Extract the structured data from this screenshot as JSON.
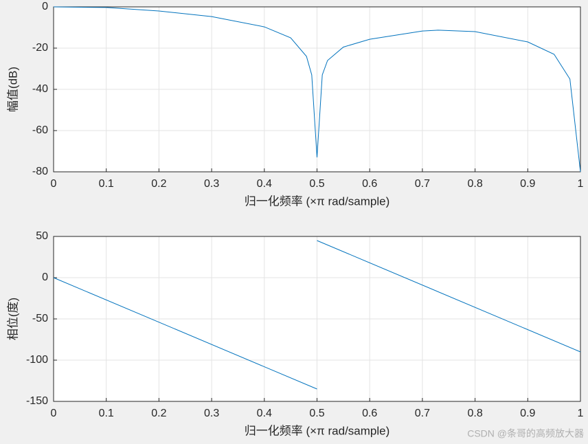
{
  "chart_data": [
    {
      "type": "line",
      "xlabel": "归一化频率 (×π rad/sample)",
      "ylabel": "幅值(dB)",
      "x": [
        0,
        0.1,
        0.2,
        0.3,
        0.4,
        0.45,
        0.48,
        0.49,
        0.5,
        0.51,
        0.52,
        0.55,
        0.6,
        0.7,
        0.73,
        0.8,
        0.9,
        0.95,
        0.98,
        1
      ],
      "values": [
        0,
        -0.3,
        -2,
        -4.7,
        -9.7,
        -15,
        -24,
        -33,
        -73,
        -33,
        -26,
        -19.5,
        -15.7,
        -11.7,
        -11.3,
        -12,
        -17,
        -23,
        -35,
        -80
      ],
      "color": "#0072bd",
      "xlim": [
        0,
        1
      ],
      "ylim": [
        -80,
        0
      ],
      "xticks": [
        0,
        0.1,
        0.2,
        0.3,
        0.4,
        0.5,
        0.6,
        0.7,
        0.8,
        0.9,
        1
      ],
      "yticks": [
        -80,
        -60,
        -40,
        -20,
        0
      ],
      "grid": true
    },
    {
      "type": "line",
      "xlabel": "归一化频率 (×π rad/sample)",
      "ylabel": "相位(度)",
      "x": [
        0,
        0.5,
        0.5,
        0.5,
        1
      ],
      "values": [
        0,
        -135,
        null,
        45,
        -90
      ],
      "color": "#0072bd",
      "xlim": [
        0,
        1
      ],
      "ylim": [
        -150,
        50
      ],
      "xticks": [
        0,
        0.1,
        0.2,
        0.3,
        0.4,
        0.5,
        0.6,
        0.7,
        0.8,
        0.9,
        1
      ],
      "yticks": [
        -150,
        -100,
        -50,
        0,
        50
      ],
      "grid": true
    }
  ],
  "watermark": "CSDN @条哥的高频放大器"
}
